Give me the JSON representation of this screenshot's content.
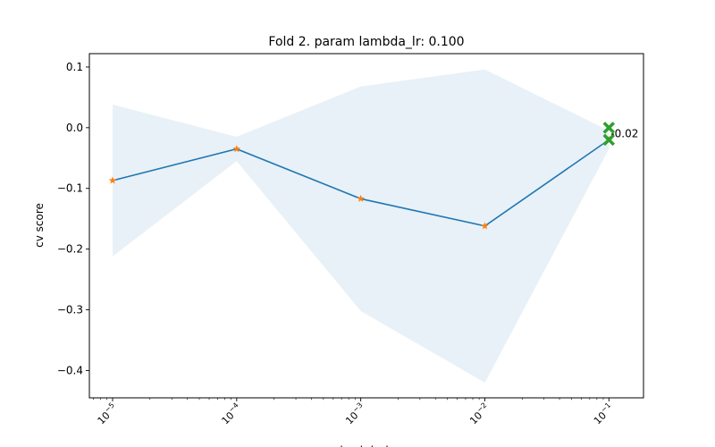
{
  "chart_data": {
    "type": "line",
    "title": "Fold 2. param lambda_lr: 0.100",
    "xlabel": "lambda_lr",
    "ylabel": "cv score",
    "x_scale": "log",
    "x": [
      1e-05,
      0.0001,
      0.001,
      0.01,
      0.1
    ],
    "x_ticks": [
      {
        "base": "10",
        "exp": "−5"
      },
      {
        "base": "10",
        "exp": "−4"
      },
      {
        "base": "10",
        "exp": "−3"
      },
      {
        "base": "10",
        "exp": "−2"
      },
      {
        "base": "10",
        "exp": "−1"
      }
    ],
    "xlim": [
      6.5e-06,
      0.19
    ],
    "ylim": [
      -0.445,
      0.122
    ],
    "y_ticks": [
      0.1,
      0.0,
      -0.1,
      -0.2,
      -0.3,
      -0.4
    ],
    "y_tick_labels": [
      "0.1",
      "0.0",
      "−0.1",
      "−0.2",
      "−0.3",
      "−0.4"
    ],
    "series": [
      {
        "values": [
          -0.087,
          -0.035,
          -0.117,
          -0.162,
          -0.02
        ],
        "color": "#1f77b4",
        "marker": "star",
        "marker_color": "#ff7f0e"
      }
    ],
    "band": {
      "upper": [
        0.038,
        -0.015,
        0.068,
        0.096,
        -0.005
      ],
      "lower": [
        -0.212,
        -0.055,
        -0.302,
        -0.42,
        -0.035
      ],
      "color": "#1f77b4",
      "opacity": 0.1
    },
    "best": {
      "x": 0.1,
      "y_values": [
        0.0,
        -0.02
      ],
      "marker": "x",
      "color": "#2ca02c",
      "annotation": "-0.02"
    },
    "grid": false,
    "legend": "none"
  }
}
